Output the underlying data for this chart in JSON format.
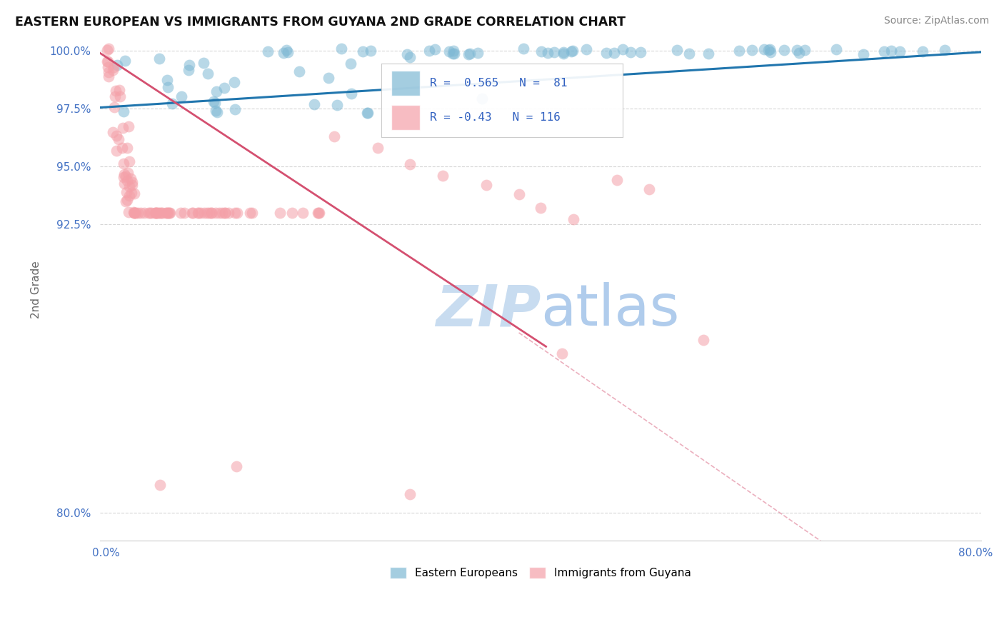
{
  "title": "EASTERN EUROPEAN VS IMMIGRANTS FROM GUYANA 2ND GRADE CORRELATION CHART",
  "source": "Source: ZipAtlas.com",
  "ylabel": "2nd Grade",
  "xlim": [
    -0.005,
    0.805
  ],
  "ylim": [
    0.788,
    1.005
  ],
  "yticks": [
    0.8,
    0.925,
    0.95,
    0.975,
    1.0
  ],
  "ytick_labels": [
    "80.0%",
    "92.5%",
    "95.0%",
    "97.5%",
    "100.0%"
  ],
  "xtick_vals": [
    0.0,
    0.1,
    0.2,
    0.3,
    0.4,
    0.5,
    0.6,
    0.7,
    0.8
  ],
  "xtick_labels": [
    "0.0%",
    "",
    "",
    "",
    "",
    "",
    "",
    "",
    "80.0%"
  ],
  "blue_color": "#7EB8D4",
  "pink_color": "#F4A0A8",
  "blue_edge_color": "#5A9ABF",
  "pink_edge_color": "#E07080",
  "blue_trend_color": "#2176AE",
  "pink_trend_color": "#D45070",
  "blue_r": 0.565,
  "blue_n": 81,
  "pink_r": -0.43,
  "pink_n": 116,
  "legend_r_color": "#3060C0",
  "watermark_zip_color": "#C8DCF0",
  "watermark_atlas_color": "#B0CCEC"
}
